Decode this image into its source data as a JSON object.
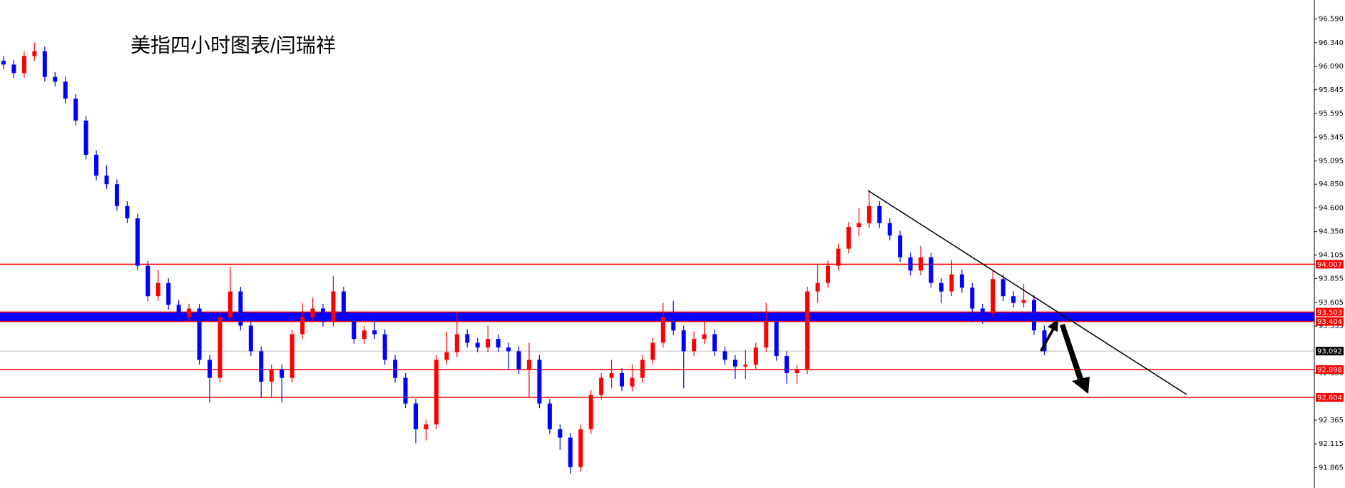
{
  "chart_data": {
    "type": "candlestick",
    "title": "美指四小时图表/闫瑞祥",
    "up_color": "#ff0000",
    "down_color": "#0000ff",
    "ylim": [
      91.65,
      96.79
    ],
    "yticks": [
      {
        "value": 96.59,
        "label": "96.590"
      },
      {
        "value": 96.34,
        "label": "96.340"
      },
      {
        "value": 96.09,
        "label": "96.090"
      },
      95.845,
      95.595,
      95.345,
      95.095,
      {
        "value": 94.85,
        "label": "94.850"
      },
      {
        "value": 94.6,
        "label": "94.600"
      },
      {
        "value": 94.35,
        "label": "94.350"
      },
      94.105,
      93.855,
      93.605,
      93.355,
      {
        "value": 92.86,
        "label": "92.860"
      },
      92.365,
      92.115,
      91.865
    ],
    "levels": [
      {
        "value": 94.007,
        "label": "94.007"
      },
      {
        "value": 92.898,
        "label": "92.898"
      },
      {
        "value": 92.604,
        "label": "92.604"
      }
    ],
    "level_color": "#ff0000",
    "zone": {
      "high": {
        "value": 93.503,
        "label": "93.503"
      },
      "low": {
        "value": 93.404,
        "label": "93.404"
      },
      "color": "#0000ff"
    },
    "current": {
      "value": 93.092,
      "label": "93.092"
    },
    "open": [
      96.15,
      96.11,
      96.02,
      96.2,
      96.25,
      95.98,
      95.93,
      95.75,
      95.52,
      95.16,
      94.94,
      94.85,
      94.62,
      94.49,
      93.99,
      93.67,
      93.81,
      93.58,
      93.45,
      93.54,
      93.0,
      92.81,
      93.45,
      93.72,
      93.36,
      93.09,
      92.77,
      92.9,
      92.81,
      93.27,
      93.45,
      93.54,
      93.4,
      93.72,
      93.45,
      93.22,
      93.31,
      93.27,
      93.0,
      92.81,
      92.54,
      92.27,
      92.32,
      93.0,
      93.08,
      93.27,
      93.18,
      93.13,
      93.22,
      93.13,
      93.09,
      92.9,
      93.0,
      92.54,
      92.27,
      92.18,
      91.87,
      92.27,
      92.63,
      92.81,
      92.86,
      92.72,
      92.81,
      93.0,
      93.18,
      93.45,
      93.31,
      93.09,
      93.22,
      93.27,
      93.09,
      93.0,
      92.93,
      92.95,
      93.13,
      93.4,
      93.04,
      92.86,
      92.9,
      93.72,
      93.81,
      93.99,
      94.17,
      94.4,
      94.44,
      94.62,
      94.44,
      94.31,
      94.08,
      93.94,
      94.08,
      93.81,
      93.72,
      93.9,
      93.76,
      93.54,
      93.49,
      93.85,
      93.67,
      93.6,
      93.63,
      93.31
    ],
    "high": [
      96.2,
      96.16,
      96.25,
      96.34,
      96.3,
      96.03,
      95.98,
      95.8,
      95.57,
      95.21,
      95.05,
      94.9,
      94.67,
      94.54,
      94.04,
      93.95,
      93.86,
      93.63,
      93.59,
      93.59,
      93.05,
      93.5,
      93.98,
      93.77,
      93.41,
      93.14,
      92.95,
      92.95,
      93.32,
      93.6,
      93.65,
      93.59,
      93.88,
      93.77,
      93.5,
      93.36,
      93.45,
      93.32,
      93.05,
      92.86,
      92.59,
      92.37,
      93.05,
      93.3,
      93.5,
      93.32,
      93.23,
      93.36,
      93.27,
      93.18,
      93.14,
      93.18,
      93.05,
      92.59,
      92.32,
      92.23,
      92.32,
      92.68,
      92.86,
      93.0,
      92.91,
      92.95,
      93.05,
      93.23,
      93.6,
      93.62,
      93.36,
      93.3,
      93.4,
      93.32,
      93.14,
      93.05,
      93.1,
      93.18,
      93.6,
      93.45,
      93.09,
      92.95,
      93.77,
      94.0,
      94.04,
      94.22,
      94.45,
      94.6,
      94.78,
      94.67,
      94.49,
      94.36,
      94.13,
      94.2,
      94.13,
      93.86,
      94.05,
      93.95,
      93.81,
      93.59,
      93.95,
      93.9,
      93.72,
      93.8,
      93.68,
      93.36
    ],
    "low": [
      96.06,
      95.97,
      95.97,
      96.15,
      95.93,
      95.88,
      95.7,
      95.47,
      95.11,
      94.89,
      94.8,
      94.57,
      94.44,
      93.94,
      93.62,
      93.62,
      93.53,
      93.4,
      93.4,
      92.95,
      92.55,
      92.76,
      93.4,
      93.31,
      93.04,
      92.6,
      92.6,
      92.55,
      92.76,
      93.22,
      93.4,
      93.35,
      93.35,
      93.4,
      93.17,
      93.17,
      93.22,
      92.95,
      92.76,
      92.49,
      92.12,
      92.15,
      92.27,
      92.95,
      93.03,
      93.13,
      93.08,
      93.08,
      93.08,
      92.9,
      92.85,
      92.6,
      92.49,
      92.22,
      92.05,
      91.8,
      91.82,
      92.22,
      92.58,
      92.7,
      92.67,
      92.67,
      92.76,
      92.95,
      93.13,
      93.26,
      92.7,
      93.04,
      93.17,
      93.04,
      92.95,
      92.8,
      92.8,
      92.9,
      93.08,
      92.99,
      92.75,
      92.75,
      92.85,
      93.6,
      93.76,
      93.94,
      94.12,
      94.3,
      94.39,
      94.39,
      94.26,
      94.03,
      93.89,
      93.89,
      93.76,
      93.6,
      93.67,
      93.71,
      93.4,
      93.38,
      93.44,
      93.62,
      93.55,
      93.55,
      93.26,
      93.05
    ],
    "close": [
      96.11,
      96.02,
      96.2,
      96.25,
      95.98,
      95.93,
      95.75,
      95.52,
      95.16,
      94.94,
      94.85,
      94.62,
      94.49,
      93.99,
      93.67,
      93.81,
      93.58,
      93.45,
      93.54,
      93.0,
      92.81,
      93.45,
      93.72,
      93.36,
      93.09,
      92.77,
      92.9,
      92.81,
      93.27,
      93.45,
      93.54,
      93.4,
      93.72,
      93.45,
      93.22,
      93.31,
      93.27,
      93.0,
      92.81,
      92.54,
      92.27,
      92.32,
      93.0,
      93.08,
      93.27,
      93.18,
      93.13,
      93.22,
      93.13,
      93.09,
      92.9,
      93.0,
      92.54,
      92.27,
      92.18,
      91.87,
      92.27,
      92.63,
      92.81,
      92.86,
      92.72,
      92.81,
      93.0,
      93.18,
      93.45,
      93.31,
      93.09,
      93.22,
      93.27,
      93.09,
      93.0,
      92.93,
      92.95,
      93.13,
      93.4,
      93.04,
      92.86,
      92.9,
      93.72,
      93.81,
      93.99,
      94.17,
      94.4,
      94.44,
      94.62,
      94.44,
      94.31,
      94.08,
      93.94,
      94.08,
      93.81,
      93.72,
      93.9,
      93.76,
      93.54,
      93.49,
      93.85,
      93.67,
      93.6,
      93.63,
      93.31,
      93.09
    ]
  }
}
